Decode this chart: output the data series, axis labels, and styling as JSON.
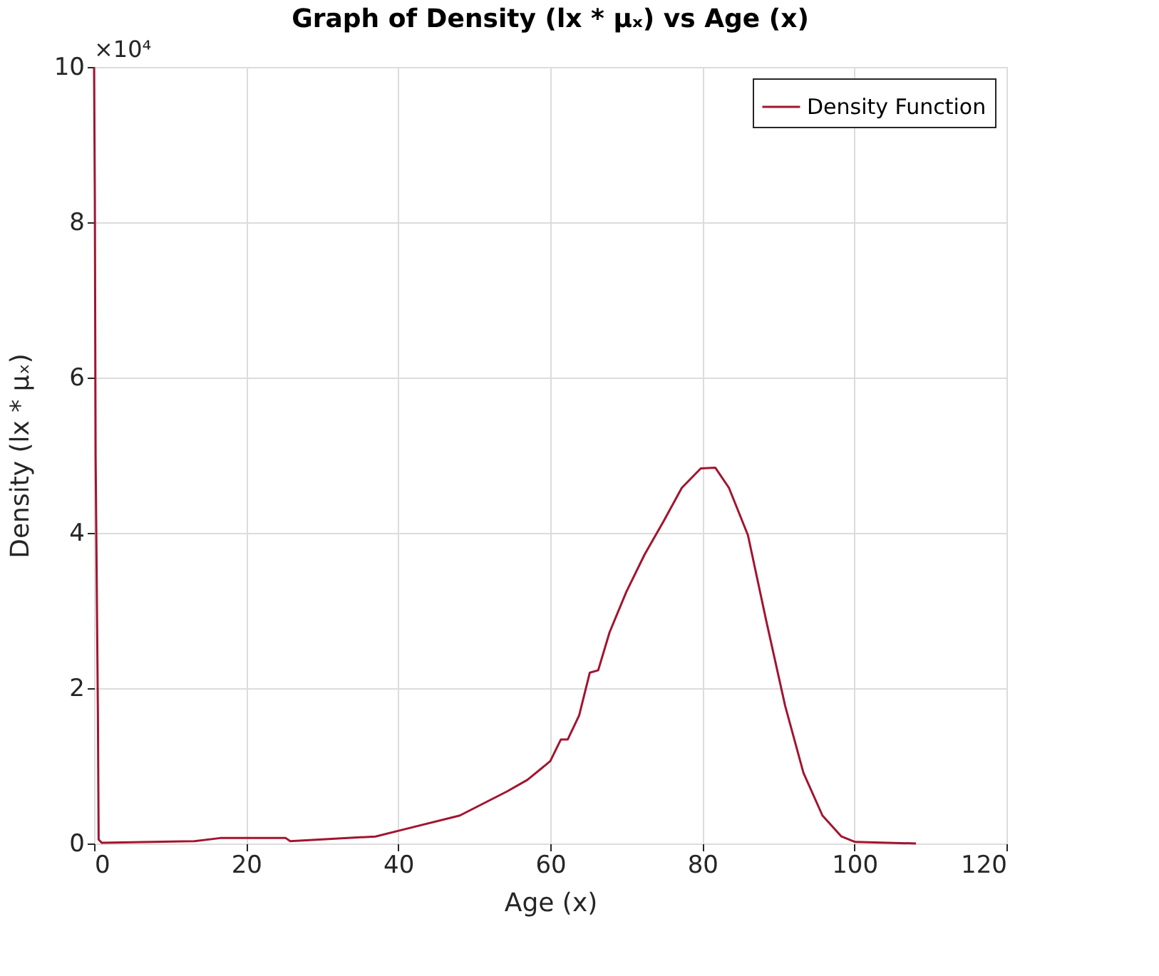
{
  "chart_data": {
    "type": "line",
    "title": "Graph of Density (lx * μₓ) vs Age (x)",
    "xlabel": "Age (x)",
    "ylabel": "Density (lx * μₓ)",
    "annotations": [
      "×10⁴"
    ],
    "x": [
      0,
      0.1,
      0.2,
      0.5,
      0.6,
      1,
      13.2,
      16.6,
      25.2,
      25.8,
      37,
      40.7,
      48.1,
      54.3,
      57,
      60,
      61.4,
      62.3,
      63.8,
      65.2,
      66.3,
      67.8,
      70,
      72.4,
      74.9,
      77.3,
      79.8,
      81.7,
      83.5,
      86,
      88.4,
      90.9,
      93.3,
      95.8,
      98.3,
      100.1,
      108.1
    ],
    "series": [
      {
        "name": "Density Function",
        "color": "#a2142f",
        "values": [
          10,
          8.3,
          5.0,
          1.7,
          0.05,
          0.01,
          0.03,
          0.07,
          0.07,
          0.03,
          0.09,
          0.18,
          0.36,
          0.67,
          0.82,
          1.06,
          1.34,
          1.34,
          1.65,
          2.2,
          2.23,
          2.72,
          3.24,
          3.72,
          4.15,
          4.58,
          4.83,
          4.84,
          4.58,
          3.97,
          2.87,
          1.77,
          0.91,
          0.36,
          0.09,
          0.02,
          0
        ]
      }
    ],
    "xlim": [
      0,
      120
    ],
    "xticks": [
      0,
      20,
      40,
      60,
      80,
      100,
      120
    ],
    "ylim": [
      0,
      10
    ],
    "yticks": [
      0,
      2,
      4,
      6,
      8,
      10
    ],
    "grid": true,
    "legend": "top right",
    "line_style": "solid",
    "marker": "none"
  }
}
